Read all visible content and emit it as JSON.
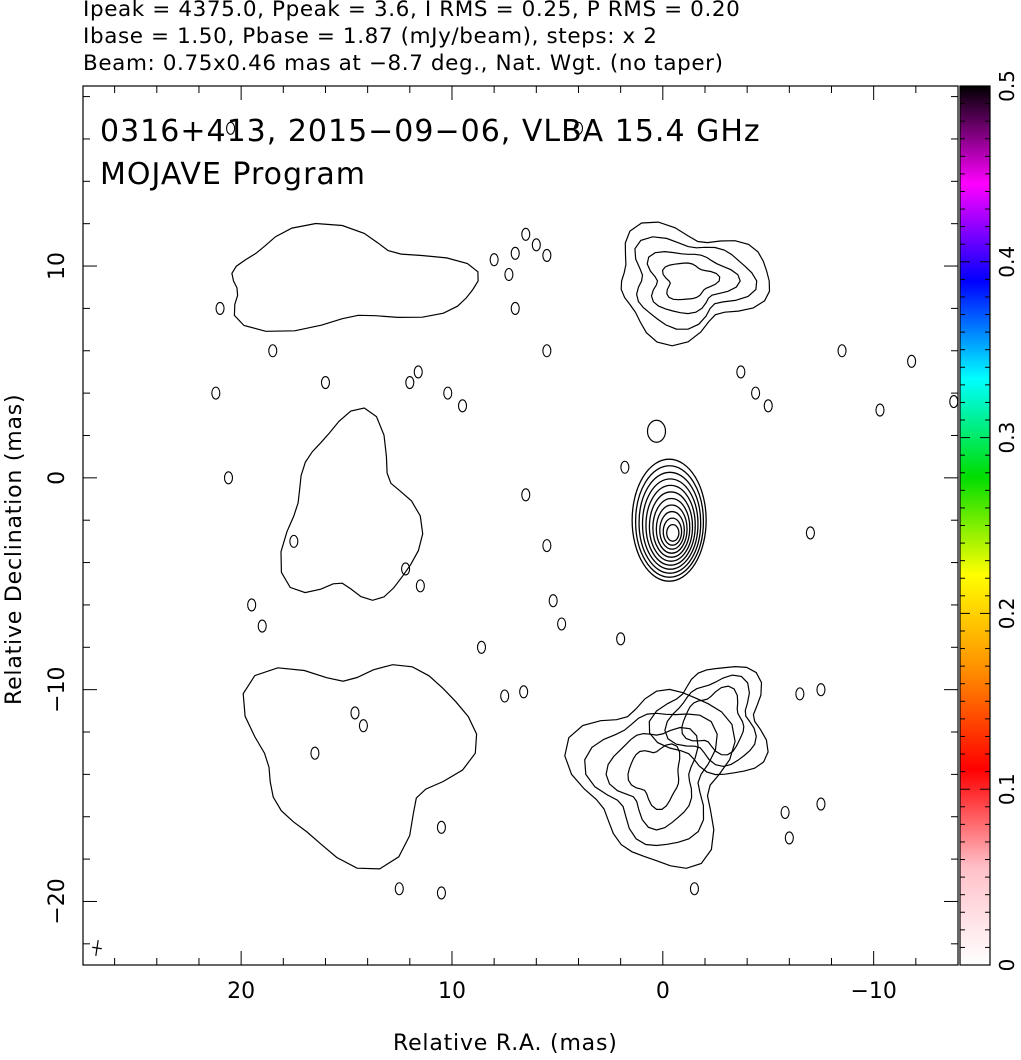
{
  "header": {
    "line1": "Ipeak = 4375.0, Ppeak = 3.6, I RMS = 0.25, P RMS = 0.20",
    "line2": "Ibase = 1.50, Pbase = 1.87 (mJy/beam), steps: x 2",
    "line3": "Beam: 0.75x0.46 mas at −8.7 deg., Nat. Wgt. (no taper)"
  },
  "chart_data": {
    "type": "contour",
    "title": "0316+413, 2015−09−06, VLBA 15.4 GHz",
    "subtitle": "MOJAVE Program",
    "xlabel": "Relative R.A. (mas)",
    "ylabel": "Relative Declination (mas)",
    "xlim": [
      27.5,
      -14
    ],
    "ylim": [
      -23,
      18.5
    ],
    "x_ticks": [
      {
        "value": 20,
        "label": "20"
      },
      {
        "value": 10,
        "label": "10"
      },
      {
        "value": 0,
        "label": "0"
      },
      {
        "value": -10,
        "label": "−10"
      }
    ],
    "y_ticks": [
      {
        "value": 10,
        "label": "10"
      },
      {
        "value": 0,
        "label": "0"
      },
      {
        "value": -10,
        "label": "−10"
      },
      {
        "value": -20,
        "label": "−20"
      }
    ],
    "colorbar": {
      "range": [
        0,
        0.5
      ],
      "ticks": [
        {
          "value": 0,
          "label": "0"
        },
        {
          "value": 0.1,
          "label": "0.1"
        },
        {
          "value": 0.2,
          "label": "0.2"
        },
        {
          "value": 0.3,
          "label": "0.3"
        },
        {
          "value": 0.4,
          "label": "0.4"
        },
        {
          "value": 0.5,
          "label": "0.5"
        }
      ],
      "colors": [
        "#ffffff",
        "#ffc0c8",
        "#ff0000",
        "#ff8c00",
        "#ffff00",
        "#00dd00",
        "#00ffff",
        "#0000ff",
        "#ff00ff",
        "#000000"
      ]
    },
    "core": {
      "x": -0.3,
      "y": -2.0,
      "levels": 11
    },
    "regions": [
      {
        "x": 14.8,
        "y": -1.8,
        "rx": 3.0,
        "ry": 4.2,
        "levels": 1
      },
      {
        "x": 15.2,
        "y": 9.3,
        "rx": 5.8,
        "ry": 2.2,
        "levels": 1
      },
      {
        "x": -1.2,
        "y": 9.3,
        "rx": 3.5,
        "ry": 2.5,
        "levels": 4
      },
      {
        "x": 14.5,
        "y": -13.0,
        "rx": 5.0,
        "ry": 4.5,
        "levels": 1
      },
      {
        "x": 0.3,
        "y": -14.0,
        "rx": 3.5,
        "ry": 4.0,
        "levels": 4
      },
      {
        "x": -2.5,
        "y": -11.5,
        "rx": 2.5,
        "ry": 2.5,
        "levels": 3
      }
    ],
    "blobs": [
      [
        21,
        8
      ],
      [
        18.5,
        6
      ],
      [
        16,
        4.5
      ],
      [
        21.2,
        4
      ],
      [
        20.6,
        0
      ],
      [
        17.5,
        -3
      ],
      [
        19.5,
        -6
      ],
      [
        19,
        -7
      ],
      [
        12,
        4.5
      ],
      [
        11.6,
        5
      ],
      [
        10.2,
        4
      ],
      [
        9.5,
        3.4
      ],
      [
        7,
        8
      ],
      [
        5.5,
        6
      ],
      [
        12.2,
        -4.3
      ],
      [
        11.5,
        -5.1
      ],
      [
        5.5,
        -3.2
      ],
      [
        5.2,
        -5.8
      ],
      [
        4.8,
        -6.9
      ],
      [
        8.6,
        -8
      ],
      [
        7.5,
        -10.3
      ],
      [
        6.6,
        -10.1
      ],
      [
        2,
        -7.6
      ],
      [
        -3.7,
        5
      ],
      [
        -4.4,
        4
      ],
      [
        -5,
        3.4
      ],
      [
        -7,
        -2.6
      ],
      [
        -8.5,
        6
      ],
      [
        -11.8,
        5.5
      ],
      [
        -10.3,
        3.2
      ],
      [
        -13.8,
        3.6
      ],
      [
        -6.5,
        -10.2
      ],
      [
        -7.5,
        -10
      ],
      [
        -5.8,
        -15.8
      ],
      [
        -7.5,
        -15.4
      ],
      [
        -6,
        -17
      ],
      [
        -1.5,
        -19.4
      ],
      [
        12.5,
        -19.4
      ],
      [
        10.5,
        -19.6
      ],
      [
        10.5,
        -16.5
      ],
      [
        16.5,
        -13
      ],
      [
        14.6,
        -11.1
      ],
      [
        14.2,
        -11.7
      ],
      [
        4,
        16.5
      ],
      [
        20.5,
        16.5
      ],
      [
        8,
        10.3
      ],
      [
        7,
        10.6
      ],
      [
        6,
        11
      ],
      [
        5.5,
        10.5
      ],
      [
        6.5,
        11.5
      ],
      [
        7.3,
        9.6
      ],
      [
        1.8,
        0.5
      ],
      [
        6.5,
        -0.8
      ]
    ],
    "beam": {
      "major": 0.75,
      "minor": 0.46,
      "pa_deg": -8.7
    }
  }
}
